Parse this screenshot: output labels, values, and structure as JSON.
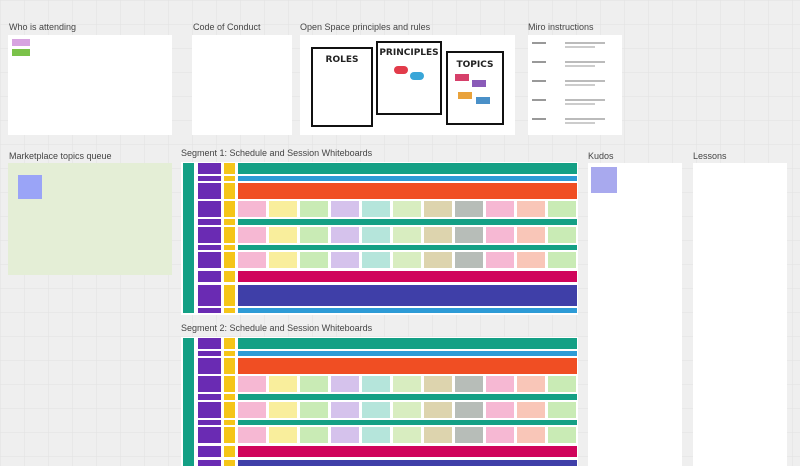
{
  "frames": [
    {
      "title": "Who is attending"
    },
    {
      "title": "Code of Conduct"
    },
    {
      "title": "Open Space principles and rules"
    },
    {
      "title": "Miro instructions"
    },
    {
      "title": "Marketplace topics queue"
    },
    {
      "title": "Segment 1: Schedule and Session Whiteboards"
    },
    {
      "title": "Kudos"
    },
    {
      "title": "Lessons"
    },
    {
      "title": "Segment 2: Schedule and Session Whiteboards"
    }
  ],
  "posters": [
    "ROLES",
    "PRINCIPLES",
    "TOPICS"
  ]
}
